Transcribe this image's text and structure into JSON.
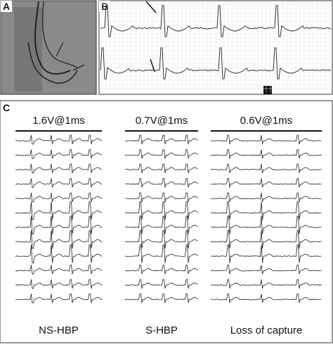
{
  "panels": [
    {
      "label": "A"
    },
    {
      "label": "B"
    },
    {
      "label": "C",
      "columns": [
        {
          "setting": "1.6V@1ms",
          "name": "NS-HBP"
        },
        {
          "setting": "0.7V@1ms",
          "name": "S-HBP"
        },
        {
          "setting": "0.6V@1ms",
          "name": "Loss of capture"
        }
      ]
    }
  ]
}
